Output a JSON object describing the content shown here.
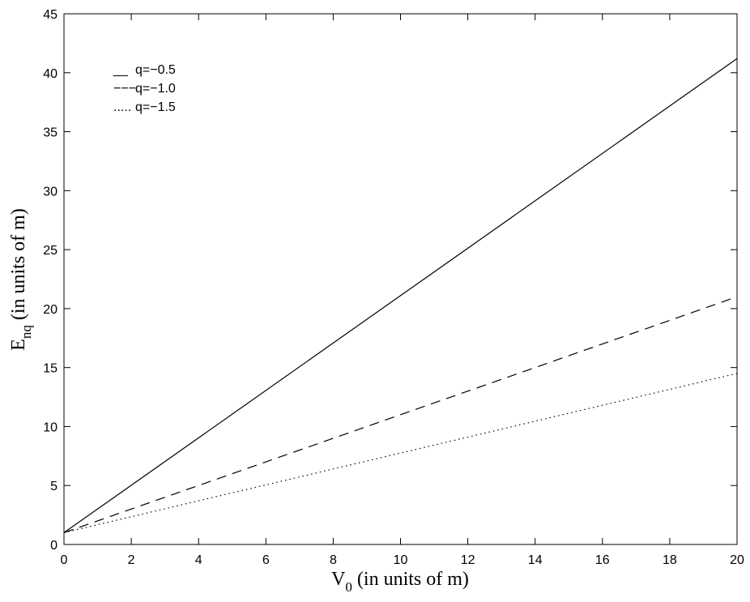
{
  "chart_data": {
    "type": "line",
    "title": "",
    "xlabel_main": "V",
    "xlabel_sub": "0",
    "xlabel_rest": " (in units of m)",
    "ylabel_main": "E",
    "ylabel_sub": "nq",
    "ylabel_rest": " (in units of m)",
    "xlim": [
      0,
      20
    ],
    "ylim": [
      0,
      45
    ],
    "xticks": [
      0,
      2,
      4,
      6,
      8,
      10,
      12,
      14,
      16,
      18,
      20
    ],
    "yticks": [
      0,
      5,
      10,
      15,
      20,
      25,
      30,
      35,
      40,
      45
    ],
    "grid": false,
    "legend_position": "top-left",
    "series": [
      {
        "name": "q=−0.5",
        "legend_marker": "__",
        "style": "solid",
        "x": [
          0,
          20
        ],
        "y": [
          1.0,
          41.2
        ]
      },
      {
        "name": "q=−1.0",
        "legend_marker": "−−−",
        "style": "dashed",
        "x": [
          0,
          20
        ],
        "y": [
          1.0,
          21.0
        ]
      },
      {
        "name": "q=−1.5",
        "legend_marker": ".....",
        "style": "dotted",
        "x": [
          0,
          20
        ],
        "y": [
          1.0,
          14.5
        ]
      }
    ]
  }
}
